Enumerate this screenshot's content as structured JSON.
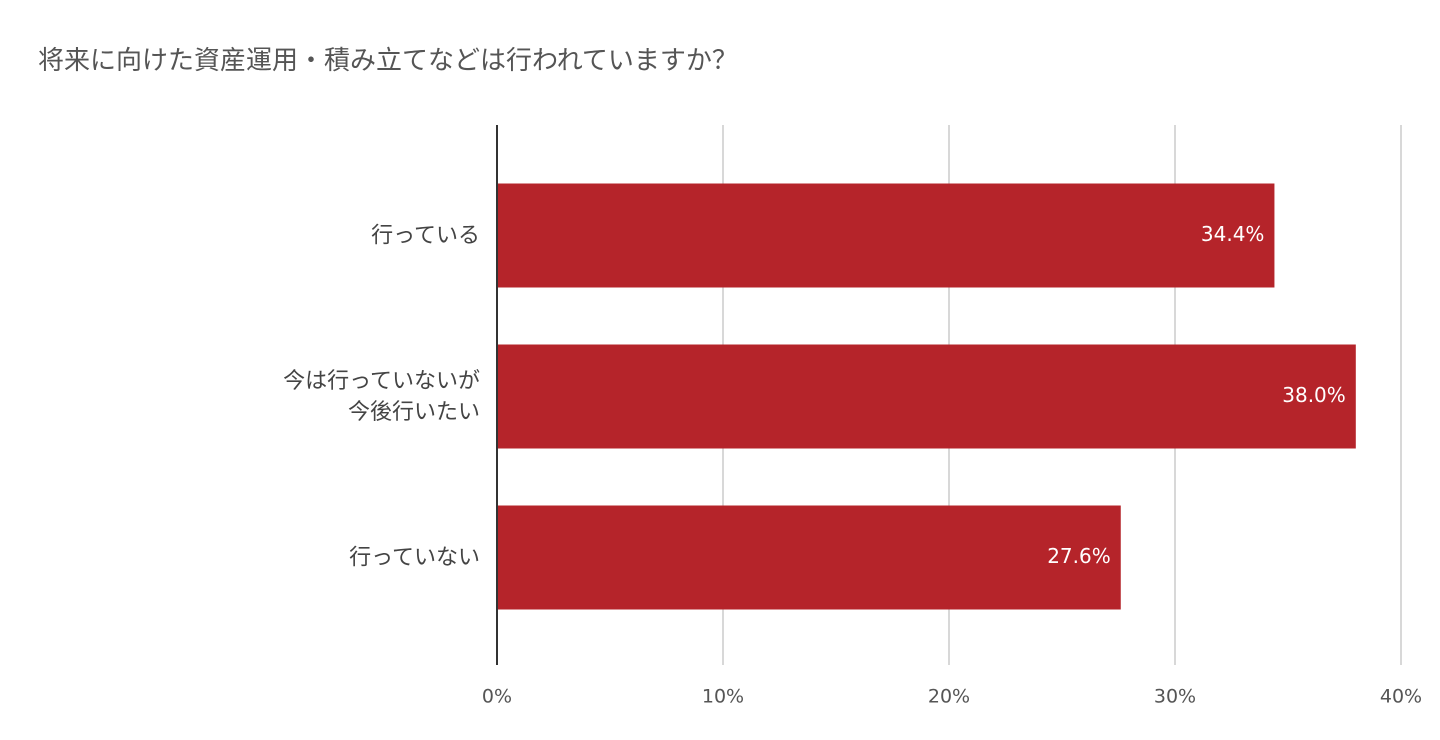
{
  "chart_data": {
    "type": "bar",
    "orientation": "horizontal",
    "title": "将来に向けた資産運用・積み立てなどは行われていますか？",
    "categories": [
      "行っている",
      "今は行っていないが\n今後行いたい",
      "行っていない"
    ],
    "values": [
      34.4,
      38.0,
      27.6
    ],
    "value_labels": [
      "34.4%",
      "38.0%",
      "27.6%"
    ],
    "color": "#b5242a",
    "xlim": [
      0,
      40
    ],
    "xticks": [
      {
        "value": 0,
        "label": "0%"
      },
      {
        "value": 10,
        "label": "10%"
      },
      {
        "value": 20,
        "label": "20%"
      },
      {
        "value": 30,
        "label": "30%"
      },
      {
        "value": 40,
        "label": "40%"
      }
    ],
    "grid": true
  }
}
